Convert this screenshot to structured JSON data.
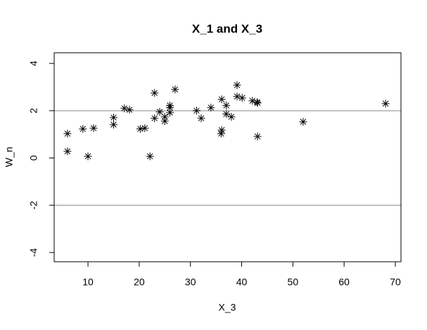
{
  "chart_data": {
    "type": "scatter",
    "title": "X_1 and X_3",
    "xlabel": "X_3",
    "ylabel": "W_n",
    "x": [
      6,
      6,
      9,
      10,
      11.1,
      15,
      15,
      17.1,
      18.1,
      20.2,
      21.1,
      22.1,
      23,
      23,
      24,
      25,
      25,
      26,
      26,
      26,
      27,
      31.2,
      32.1,
      34,
      36.1,
      36.1,
      36,
      37,
      37,
      38,
      39.1,
      39.1,
      40.1,
      42.1,
      43.1,
      43,
      43.1,
      52,
      68.1
    ],
    "y": [
      1.03,
      0.28,
      1.23,
      0.07,
      1.26,
      1.71,
      1.41,
      2.1,
      2.04,
      1.23,
      1.26,
      0.07,
      2.75,
      1.68,
      1.95,
      1.74,
      1.56,
      2.22,
      2.13,
      1.92,
      2.9,
      2.0,
      1.68,
      2.13,
      2.48,
      1.18,
      1.03,
      2.22,
      1.86,
      1.74,
      3.08,
      2.6,
      2.54,
      2.42,
      2.33,
      2.36,
      0.91,
      1.53,
      2.3
    ],
    "color": "#000000",
    "xlim": [
      3.4,
      71.1
    ],
    "ylim": [
      -4.39,
      4.45
    ],
    "xticks": [
      10,
      20,
      30,
      40,
      50,
      60,
      70
    ],
    "yticks": [
      -4,
      -2,
      0,
      2,
      4
    ],
    "hlines": [
      2,
      -2
    ],
    "hline_color": "#bebebe"
  }
}
